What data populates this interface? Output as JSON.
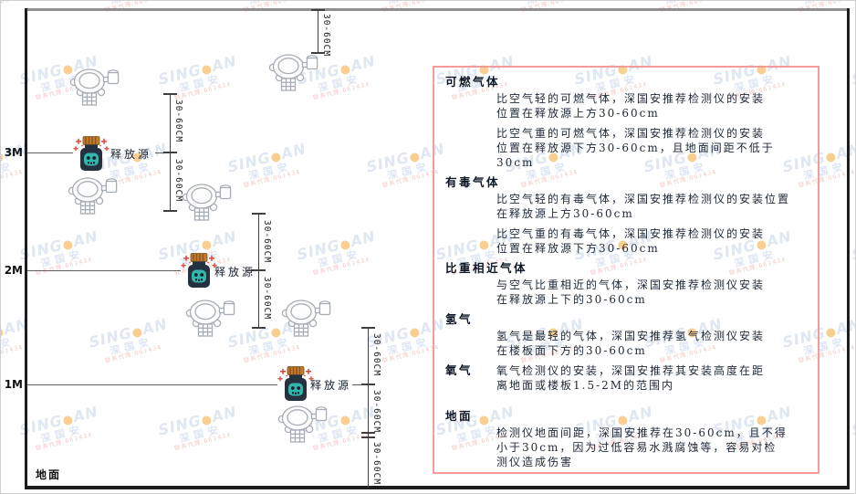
{
  "watermark": {
    "brand_left": "SING",
    "dot": "●",
    "brand_right": "AN",
    "cn": "深国安",
    "contact": "联系代理:661434"
  },
  "diagram": {
    "ground_label": "地面",
    "release_source_label": "释放源",
    "dim_label": "30-60CM",
    "levels": [
      {
        "label": "3M"
      },
      {
        "label": "2M"
      },
      {
        "label": "1M"
      }
    ],
    "icons": {
      "detector": "gas-detector-icon",
      "release_source": "release-source-bottle-icon"
    },
    "colors": {
      "panel_border": "#f49c9c",
      "source_body": "#263140",
      "source_face": "#33b5ac",
      "source_cap": "#c27b2c",
      "spark_red": "#e04f42",
      "detector_gray": "#a8adb5"
    }
  },
  "panel": {
    "sections": [
      {
        "heading": "可燃气体",
        "paragraphs": [
          "比空气轻的可燃气体，深国安推荐检测仪的安装\n位置在释放源上方30-60cm",
          "比空气重的可燃气体，深国安推荐检测仪的安装\n位置在释放源下方30-60cm，且地面间距不低于\n30cm"
        ]
      },
      {
        "heading": "有毒气体",
        "paragraphs": [
          "比空气轻的有毒气体，深国安推荐检测仪的安装位置\n在释放源上方30-60cm",
          "比空气重的有毒气体，深国安推荐检测仪的安装\n位置在释放源下方30-60cm"
        ]
      },
      {
        "heading": "比重相近气体",
        "paragraphs": [
          "与空气比重相近的气体，深国安推荐检测仪安装\n在释放源上下的30-60cm"
        ]
      },
      {
        "heading": "氢气",
        "paragraphs": [
          "氢气是最轻的气体，深国安推荐氢气检测仪安装\n在楼板面下方的30-60cm"
        ]
      },
      {
        "heading": "氧气",
        "inline": true,
        "paragraphs": [
          "氧气检测仪的安装，深国安推荐其安装高度在距\n离地面或楼板1.5-2M的范围内"
        ]
      },
      {
        "heading": "地面",
        "paragraphs": [
          "检测仪地面间距，深国安推荐在30-60cm，且不得\n小于30cm，因为过低容易水溅腐蚀等，容易对检\n测仪造成伤害"
        ]
      }
    ]
  }
}
